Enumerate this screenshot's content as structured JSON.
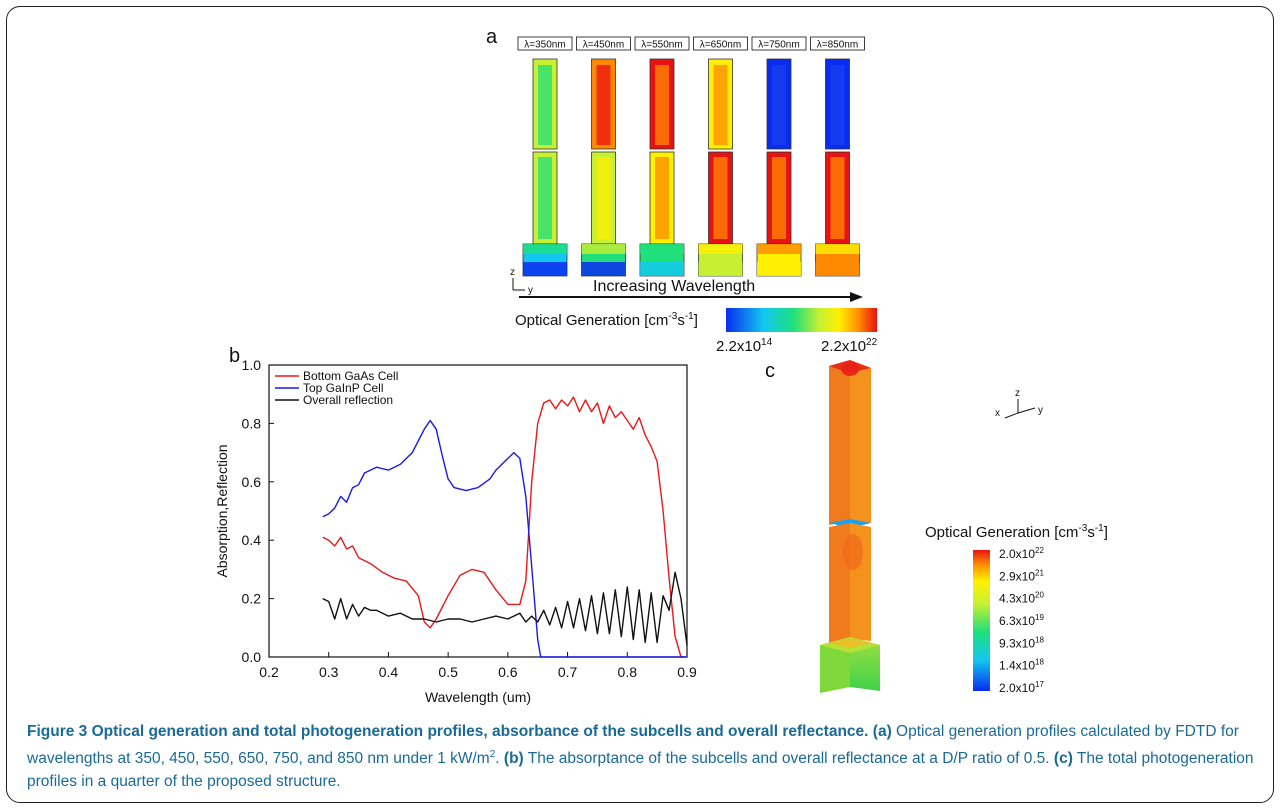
{
  "panel_a": {
    "letter": "a",
    "wavelength_labels": [
      "λ=350nm",
      "λ=450nm",
      "λ=550nm",
      "λ=650nm",
      "λ=750nm",
      "λ=850nm"
    ],
    "axis_z": "z",
    "axis_y": "y",
    "arrow_label": "Increasing Wavelength",
    "colorbar_title_main": "Optical Generation [cm",
    "colorbar_title_sup1": "-3",
    "colorbar_title_mid": "s",
    "colorbar_title_sup2": "-1",
    "colorbar_title_end": "]",
    "colorbar_min_base": "2.2x10",
    "colorbar_min_exp": "14",
    "colorbar_max_base": "2.2x10",
    "colorbar_max_exp": "22"
  },
  "chart_data": {
    "type": "line",
    "panel_letter": "b",
    "xlabel": "Wavelength (um)",
    "ylabel": "Absorption,Reflection",
    "xlim": [
      0.2,
      0.9
    ],
    "ylim": [
      0.0,
      1.0
    ],
    "xticks": [
      "0.2",
      "0.3",
      "0.4",
      "0.5",
      "0.6",
      "0.7",
      "0.8",
      "0.9"
    ],
    "yticks": [
      "0.0",
      "0.2",
      "0.4",
      "0.6",
      "0.8",
      "1.0"
    ],
    "legend_position": "top-left",
    "series": [
      {
        "name": "Bottom GaAs Cell",
        "color": "#e8191b",
        "points": [
          [
            0.29,
            0.41
          ],
          [
            0.3,
            0.4
          ],
          [
            0.31,
            0.38
          ],
          [
            0.32,
            0.41
          ],
          [
            0.33,
            0.37
          ],
          [
            0.34,
            0.38
          ],
          [
            0.35,
            0.34
          ],
          [
            0.37,
            0.32
          ],
          [
            0.39,
            0.29
          ],
          [
            0.41,
            0.27
          ],
          [
            0.43,
            0.26
          ],
          [
            0.45,
            0.21
          ],
          [
            0.46,
            0.12
          ],
          [
            0.47,
            0.1
          ],
          [
            0.48,
            0.13
          ],
          [
            0.5,
            0.21
          ],
          [
            0.52,
            0.28
          ],
          [
            0.54,
            0.3
          ],
          [
            0.56,
            0.29
          ],
          [
            0.58,
            0.23
          ],
          [
            0.6,
            0.18
          ],
          [
            0.62,
            0.18
          ],
          [
            0.63,
            0.26
          ],
          [
            0.64,
            0.6
          ],
          [
            0.65,
            0.8
          ],
          [
            0.66,
            0.87
          ],
          [
            0.67,
            0.88
          ],
          [
            0.68,
            0.85
          ],
          [
            0.69,
            0.88
          ],
          [
            0.7,
            0.86
          ],
          [
            0.71,
            0.89
          ],
          [
            0.72,
            0.84
          ],
          [
            0.73,
            0.88
          ],
          [
            0.74,
            0.84
          ],
          [
            0.75,
            0.87
          ],
          [
            0.76,
            0.8
          ],
          [
            0.77,
            0.86
          ],
          [
            0.78,
            0.82
          ],
          [
            0.79,
            0.84
          ],
          [
            0.8,
            0.81
          ],
          [
            0.81,
            0.78
          ],
          [
            0.82,
            0.82
          ],
          [
            0.83,
            0.76
          ],
          [
            0.84,
            0.72
          ],
          [
            0.85,
            0.67
          ],
          [
            0.86,
            0.5
          ],
          [
            0.87,
            0.27
          ],
          [
            0.88,
            0.07
          ],
          [
            0.89,
            0.0
          ],
          [
            0.895,
            0.0
          ]
        ]
      },
      {
        "name": "Top GaInP Cell",
        "color": "#1a1ae6",
        "points": [
          [
            0.29,
            0.48
          ],
          [
            0.3,
            0.49
          ],
          [
            0.31,
            0.51
          ],
          [
            0.32,
            0.55
          ],
          [
            0.33,
            0.53
          ],
          [
            0.34,
            0.58
          ],
          [
            0.35,
            0.59
          ],
          [
            0.36,
            0.63
          ],
          [
            0.38,
            0.65
          ],
          [
            0.4,
            0.64
          ],
          [
            0.42,
            0.66
          ],
          [
            0.44,
            0.7
          ],
          [
            0.46,
            0.78
          ],
          [
            0.47,
            0.81
          ],
          [
            0.48,
            0.78
          ],
          [
            0.49,
            0.69
          ],
          [
            0.5,
            0.61
          ],
          [
            0.51,
            0.58
          ],
          [
            0.53,
            0.57
          ],
          [
            0.55,
            0.58
          ],
          [
            0.57,
            0.61
          ],
          [
            0.58,
            0.64
          ],
          [
            0.6,
            0.68
          ],
          [
            0.61,
            0.7
          ],
          [
            0.62,
            0.68
          ],
          [
            0.63,
            0.55
          ],
          [
            0.64,
            0.31
          ],
          [
            0.65,
            0.06
          ],
          [
            0.655,
            0.0
          ],
          [
            0.7,
            0.0
          ],
          [
            0.8,
            0.0
          ],
          [
            0.9,
            0.0
          ]
        ]
      },
      {
        "name": "Overall reflection",
        "color": "#111111",
        "points": [
          [
            0.29,
            0.2
          ],
          [
            0.3,
            0.19
          ],
          [
            0.31,
            0.13
          ],
          [
            0.32,
            0.2
          ],
          [
            0.33,
            0.13
          ],
          [
            0.34,
            0.18
          ],
          [
            0.35,
            0.14
          ],
          [
            0.36,
            0.17
          ],
          [
            0.37,
            0.16
          ],
          [
            0.38,
            0.16
          ],
          [
            0.4,
            0.14
          ],
          [
            0.42,
            0.15
          ],
          [
            0.44,
            0.13
          ],
          [
            0.46,
            0.13
          ],
          [
            0.48,
            0.12
          ],
          [
            0.5,
            0.13
          ],
          [
            0.52,
            0.13
          ],
          [
            0.54,
            0.12
          ],
          [
            0.56,
            0.13
          ],
          [
            0.58,
            0.14
          ],
          [
            0.6,
            0.13
          ],
          [
            0.62,
            0.15
          ],
          [
            0.63,
            0.12
          ],
          [
            0.64,
            0.14
          ],
          [
            0.65,
            0.12
          ],
          [
            0.66,
            0.16
          ],
          [
            0.67,
            0.11
          ],
          [
            0.68,
            0.17
          ],
          [
            0.69,
            0.1
          ],
          [
            0.7,
            0.19
          ],
          [
            0.71,
            0.1
          ],
          [
            0.72,
            0.2
          ],
          [
            0.73,
            0.09
          ],
          [
            0.74,
            0.21
          ],
          [
            0.75,
            0.08
          ],
          [
            0.76,
            0.22
          ],
          [
            0.77,
            0.08
          ],
          [
            0.78,
            0.23
          ],
          [
            0.79,
            0.07
          ],
          [
            0.8,
            0.24
          ],
          [
            0.81,
            0.06
          ],
          [
            0.82,
            0.23
          ],
          [
            0.83,
            0.05
          ],
          [
            0.84,
            0.22
          ],
          [
            0.85,
            0.05
          ],
          [
            0.86,
            0.21
          ],
          [
            0.87,
            0.16
          ],
          [
            0.88,
            0.29
          ],
          [
            0.89,
            0.2
          ],
          [
            0.9,
            0.04
          ]
        ]
      }
    ]
  },
  "panel_c": {
    "letter": "c",
    "axis_z": "z",
    "axis_x": "x",
    "axis_y": "y",
    "colorbar_title_main": "Optical Generation [cm",
    "colorbar_title_sup1": "-3",
    "colorbar_title_mid": "s",
    "colorbar_title_sup2": "-1",
    "colorbar_title_end": "]",
    "colorbar_ticks": [
      {
        "base": "2.0x10",
        "exp": "22"
      },
      {
        "base": "2.9x10",
        "exp": "21"
      },
      {
        "base": "4.3x10",
        "exp": "20"
      },
      {
        "base": "6.3x10",
        "exp": "19"
      },
      {
        "base": "9.3x10",
        "exp": "18"
      },
      {
        "base": "1.4x10",
        "exp": "18"
      },
      {
        "base": "2.0x10",
        "exp": "17"
      }
    ]
  },
  "caption": {
    "title": "Figure 3 Optical generation and total photogeneration profiles, absorbance of the subcells and overall reflectance.",
    "a_label": "(a)",
    "a_text_1": " Optical generation profiles calculated by FDTD for wavelengths at 350, 450, 550, 650, 750, and 850 nm under 1 kW/m",
    "a_text_sup": "2",
    "a_text_2": ". ",
    "b_label": "(b)",
    "b_text": " The absorptance of the subcells and overall reflectance at a D/P ratio of 0.5. ",
    "c_label": "(c)",
    "c_text": " The total photogeneration profiles in a quarter of the proposed structure."
  },
  "colors": {
    "caption": "#1a6a96",
    "colormap": [
      "#0a2cf0",
      "#12c8f0",
      "#1fe07a",
      "#c8f032",
      "#fff000",
      "#ff8a00",
      "#e81212"
    ]
  }
}
